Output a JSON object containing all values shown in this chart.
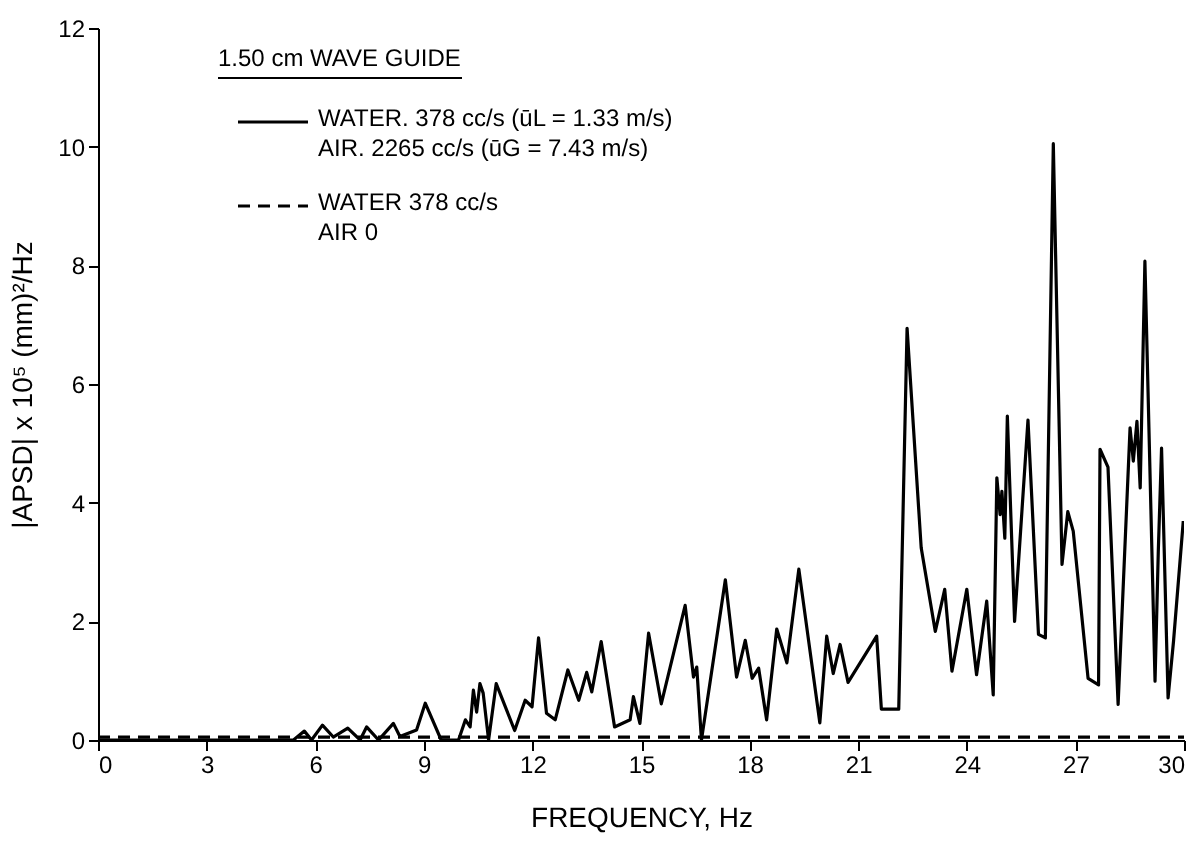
{
  "chart_data": {
    "type": "line",
    "xlabel": "FREQUENCY, Hz",
    "ylabel": "|APSD| x 10⁵ (mm)²/Hz",
    "legend_title": "1.50 cm  WAVE  GUIDE",
    "xlim": [
      0,
      30
    ],
    "xticks": [
      0,
      3,
      6,
      9,
      12,
      15,
      18,
      21,
      24,
      27,
      30
    ],
    "ylim": [
      0,
      12
    ],
    "yticks": [
      0,
      2,
      4,
      6,
      8,
      10,
      12
    ],
    "grid": false,
    "legend": "top left",
    "series": [
      {
        "name": "WATER. 378 cc/s (ūL = 1.33 m/s)\nAIR. 2265 cc/s (ūG = 7.43 m/s)",
        "color": "#000000",
        "line_style": "solid",
        "x": [
          0,
          5.4,
          5.7,
          5.9,
          6.2,
          6.5,
          6.9,
          7.24,
          7.42,
          7.75,
          8.16,
          8.34,
          8.8,
          9.04,
          9.48,
          9.96,
          10.15,
          10.28,
          10.37,
          10.46,
          10.55,
          10.64,
          10.79,
          11.0,
          11.51,
          11.8,
          11.99,
          12.17,
          12.39,
          12.63,
          12.98,
          13.28,
          13.5,
          13.64,
          13.9,
          14.27,
          14.7,
          14.79,
          14.97,
          15.21,
          15.56,
          16.22,
          16.45,
          16.54,
          16.67,
          17.33,
          17.64,
          17.88,
          18.07,
          18.25,
          18.47,
          18.75,
          19.03,
          19.36,
          19.94,
          20.13,
          20.31,
          20.5,
          20.72,
          21.51,
          21.64,
          22.12,
          22.35,
          22.74,
          23.13,
          23.39,
          23.59,
          24.0,
          24.27,
          24.55,
          24.73,
          24.83,
          24.92,
          24.97,
          25.05,
          25.12,
          25.32,
          25.69,
          25.98,
          26.17,
          26.39,
          26.63,
          26.79,
          26.94,
          27.35,
          27.64,
          27.68,
          27.9,
          28.18,
          28.51,
          28.6,
          28.7,
          28.79,
          28.92,
          29.2,
          29.29,
          29.38,
          29.56,
          29.71,
          29.98
        ],
        "values": [
          0,
          0,
          0.15,
          0,
          0.25,
          0.05,
          0.2,
          0,
          0.22,
          0,
          0.28,
          0.06,
          0.17,
          0.62,
          0,
          0,
          0.34,
          0.22,
          0.84,
          0.47,
          0.95,
          0.79,
          0,
          0.95,
          0.16,
          0.67,
          0.56,
          1.72,
          0.45,
          0.34,
          1.18,
          0.67,
          1.14,
          0.81,
          1.66,
          0.22,
          0.34,
          0.73,
          0.28,
          1.8,
          0.61,
          2.27,
          1.06,
          1.23,
          0,
          2.7,
          1.06,
          1.68,
          1.04,
          1.21,
          0.34,
          1.87,
          1.3,
          2.88,
          0.29,
          1.75,
          1.12,
          1.61,
          0.97,
          1.75,
          0.52,
          0.52,
          6.94,
          3.24,
          1.83,
          2.54,
          1.16,
          2.54,
          1.1,
          2.34,
          0.76,
          4.42,
          3.8,
          4.19,
          3.4,
          5.46,
          2.0,
          5.39,
          1.78,
          1.72,
          10.05,
          2.96,
          3.85,
          3.52,
          1.04,
          0.93,
          4.9,
          4.6,
          0.6,
          5.26,
          4.7,
          5.37,
          4.25,
          8.07,
          0.99,
          3.18,
          4.92,
          0.71,
          1.66,
          3.69
        ]
      },
      {
        "name": "WATER  378 cc/s\nAIR  0",
        "color": "#000000",
        "line_style": "dashed",
        "x": [
          0,
          10,
          20,
          30
        ],
        "values": [
          0.05,
          0.05,
          0.05,
          0.05
        ]
      }
    ]
  }
}
